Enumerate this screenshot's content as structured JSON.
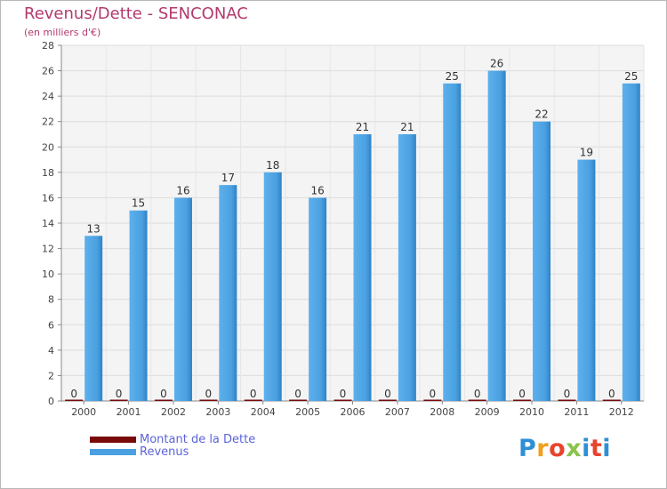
{
  "chart_data": {
    "type": "bar",
    "title": "Revenus/Dette - SENCONAC",
    "subtitle": "(en milliers d'€)",
    "categories": [
      "2000",
      "2001",
      "2002",
      "2003",
      "2004",
      "2005",
      "2006",
      "2007",
      "2008",
      "2009",
      "2010",
      "2011",
      "2012"
    ],
    "series": [
      {
        "name": "Montant de la Dette",
        "color": "#7a0a0a",
        "values": [
          0,
          0,
          0,
          0,
          0,
          0,
          0,
          0,
          0,
          0,
          0,
          0,
          0
        ]
      },
      {
        "name": "Revenus",
        "color": "#4aa0e0",
        "values": [
          13,
          15,
          16,
          17,
          18,
          16,
          21,
          21,
          25,
          26,
          22,
          19,
          25
        ]
      }
    ],
    "ylim": [
      0,
      28
    ],
    "yticks": [
      0,
      2,
      4,
      6,
      8,
      10,
      12,
      14,
      16,
      18,
      20,
      22,
      24,
      26,
      28
    ],
    "grid": true,
    "legend_position": "bottom-left"
  },
  "branding": {
    "logo_text": "Proxiti",
    "logo_colors": [
      "#2e8fd6",
      "#f0a01c",
      "#e8432e",
      "#8bc34a",
      "#2e8fd6",
      "#e8432e",
      "#2e8fd6"
    ]
  }
}
